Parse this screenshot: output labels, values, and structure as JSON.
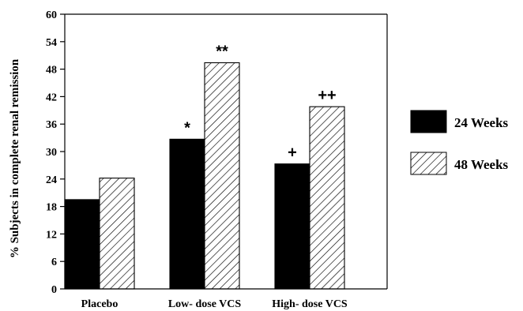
{
  "chart_data": {
    "type": "bar",
    "ylabel": "% Subjects in  complete renal remission",
    "xlabel": "",
    "ylim": [
      0,
      60
    ],
    "yticks": [
      0,
      6,
      12,
      18,
      24,
      30,
      36,
      42,
      48,
      54,
      60
    ],
    "categories": [
      "Placebo",
      "Low- dose VCS",
      "High- dose VCS"
    ],
    "series": [
      {
        "name": "24 Weeks",
        "values": [
          19.5,
          32.7,
          27.3
        ],
        "fill": "solid",
        "color": "#000000"
      },
      {
        "name": "48 Weeks",
        "values": [
          24.2,
          49.4,
          39.8
        ],
        "fill": "hatched",
        "color": "#000000"
      }
    ],
    "annotations": [
      {
        "category": 1,
        "series": 0,
        "text": "*"
      },
      {
        "category": 1,
        "series": 1,
        "text": "**"
      },
      {
        "category": 2,
        "series": 0,
        "text": "+"
      },
      {
        "category": 2,
        "series": 1,
        "text": "++"
      }
    ],
    "legend_position": "right",
    "grid": false
  }
}
